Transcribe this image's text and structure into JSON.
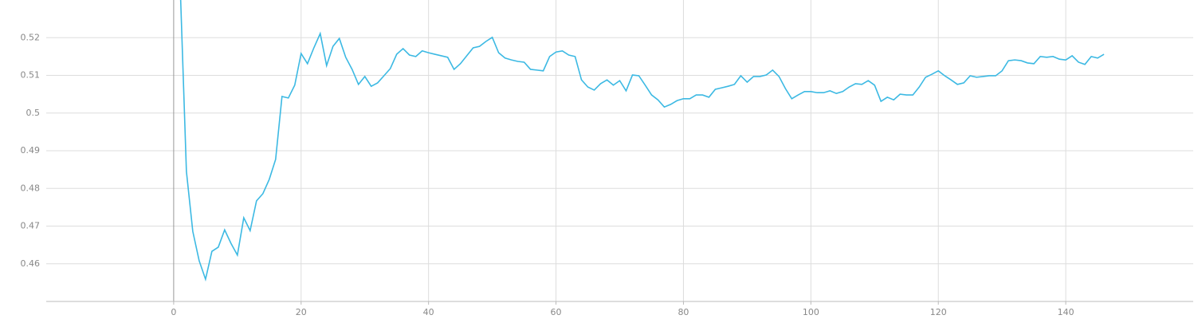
{
  "chart_data": {
    "type": "line",
    "x": [
      1,
      2,
      3,
      4,
      5,
      6,
      7,
      8,
      9,
      10,
      11,
      12,
      13,
      14,
      15,
      16,
      17,
      18,
      19,
      20,
      21,
      22,
      23,
      24,
      25,
      26,
      27,
      28,
      29,
      30,
      31,
      32,
      33,
      34,
      35,
      36,
      37,
      38,
      39,
      40,
      41,
      42,
      43,
      44,
      45,
      46,
      47,
      48,
      49,
      50,
      51,
      52,
      53,
      54,
      55,
      56,
      57,
      58,
      59,
      60,
      61,
      62,
      63,
      64,
      65,
      66,
      67,
      68,
      69,
      70,
      71,
      72,
      73,
      74,
      75,
      76,
      77,
      78,
      79,
      80,
      81,
      82,
      83,
      84,
      85,
      86,
      87,
      88,
      89,
      90,
      91,
      92,
      93,
      94,
      95,
      96,
      97,
      98,
      99,
      100,
      101,
      102,
      103,
      104,
      105,
      106,
      107,
      108,
      109,
      110,
      111,
      112,
      113,
      114,
      115,
      116,
      117,
      118,
      119,
      120,
      121,
      122,
      123,
      124,
      125,
      126,
      127,
      128,
      129,
      130,
      131,
      132,
      133,
      134,
      135,
      136,
      137,
      138,
      139,
      140,
      141,
      142,
      143,
      144,
      145,
      146
    ],
    "series": [
      {
        "color": "#3cb9e3",
        "values": [
          0.535,
          0.4845,
          0.4686,
          0.4608,
          0.4559,
          0.4633,
          0.4644,
          0.469,
          0.4654,
          0.4623,
          0.4722,
          0.4688,
          0.4767,
          0.4786,
          0.4824,
          0.4877,
          0.5044,
          0.504,
          0.5074,
          0.5158,
          0.5131,
          0.5173,
          0.5211,
          0.5126,
          0.5177,
          0.5198,
          0.5148,
          0.5116,
          0.5076,
          0.5097,
          0.5071,
          0.508,
          0.5099,
          0.5118,
          0.5156,
          0.5171,
          0.5154,
          0.515,
          0.5165,
          0.516,
          0.5156,
          0.5152,
          0.5148,
          0.5116,
          0.5131,
          0.5152,
          0.5173,
          0.5177,
          0.519,
          0.5201,
          0.516,
          0.5146,
          0.5141,
          0.5137,
          0.5135,
          0.5116,
          0.5114,
          0.5112,
          0.515,
          0.5162,
          0.5165,
          0.5154,
          0.515,
          0.5088,
          0.5069,
          0.5061,
          0.5078,
          0.5088,
          0.5074,
          0.5086,
          0.5059,
          0.5101,
          0.5099,
          0.5074,
          0.5048,
          0.5035,
          0.5016,
          0.5023,
          0.5033,
          0.5038,
          0.5038,
          0.5048,
          0.5048,
          0.5042,
          0.5063,
          0.5067,
          0.5071,
          0.5076,
          0.5099,
          0.5082,
          0.5097,
          0.5097,
          0.5101,
          0.5114,
          0.5097,
          0.5065,
          0.5038,
          0.5048,
          0.5057,
          0.5057,
          0.5054,
          0.5054,
          0.5059,
          0.5052,
          0.5057,
          0.5069,
          0.5078,
          0.5076,
          0.5086,
          0.5074,
          0.5031,
          0.5042,
          0.5035,
          0.505,
          0.5048,
          0.5048,
          0.5069,
          0.5095,
          0.5103,
          0.5112,
          0.5099,
          0.5088,
          0.5076,
          0.508,
          0.5099,
          0.5095,
          0.5097,
          0.5099,
          0.5099,
          0.5112,
          0.5139,
          0.5141,
          0.5139,
          0.5133,
          0.5131,
          0.515,
          0.5148,
          0.515,
          0.5143,
          0.5141,
          0.5152,
          0.5135,
          0.5129,
          0.515,
          0.5146,
          0.5156
        ]
      }
    ],
    "xlim": [
      -20,
      160
    ],
    "xticks": [
      0,
      20,
      40,
      60,
      80,
      100,
      120,
      140
    ],
    "ylim": [
      0.45,
      0.53
    ],
    "yticks": [
      0.46,
      0.47,
      0.48,
      0.49,
      0.5,
      0.51,
      0.52
    ],
    "grid": true
  }
}
